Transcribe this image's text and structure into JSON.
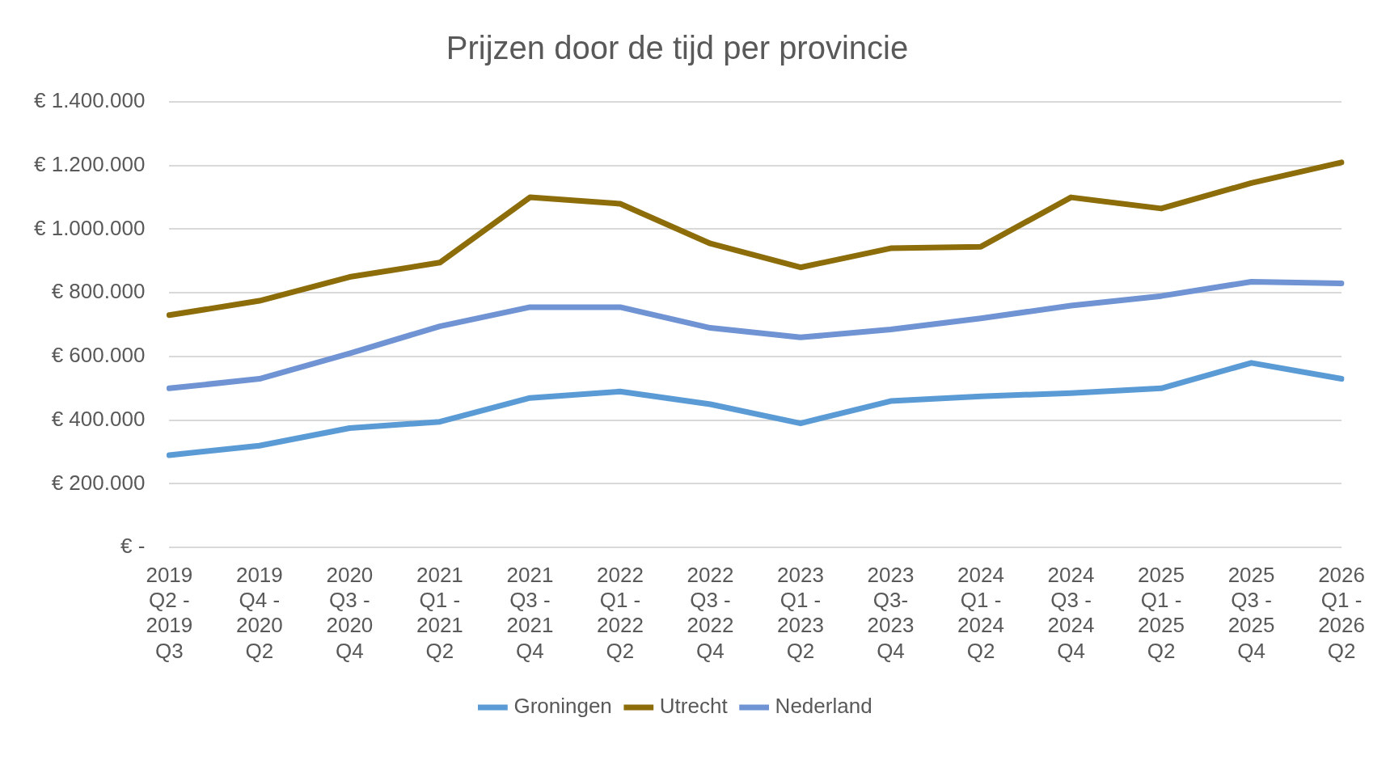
{
  "chart_data": {
    "type": "line",
    "title": "Prijzen door de tijd per provincie",
    "categories": [
      "2019 Q2 - 2019 Q3",
      "2019 Q4 - 2020 Q2",
      "2020 Q3 - 2020 Q4",
      "2021 Q1 - 2021 Q2",
      "2021 Q3 - 2021 Q4",
      "2022 Q1 - 2022 Q2",
      "2022 Q3 - 2022 Q4",
      "2023 Q1 - 2023 Q2",
      "2023 Q3-2023 Q4",
      "2024 Q1 - 2024 Q2",
      "2024 Q3 - 2024 Q4",
      "2025 Q1 - 2025 Q2",
      "2025 Q3 - 2025 Q4",
      "2026 Q1 - 2026 Q2"
    ],
    "series": [
      {
        "name": "Groningen",
        "color": "#5b9bd5",
        "values": [
          290000,
          320000,
          375000,
          395000,
          470000,
          490000,
          450000,
          390000,
          460000,
          475000,
          485000,
          500000,
          580000,
          530000
        ]
      },
      {
        "name": "Utrecht",
        "color": "#8c6d0a",
        "values": [
          730000,
          775000,
          850000,
          895000,
          1100000,
          1080000,
          955000,
          880000,
          940000,
          945000,
          1100000,
          1065000,
          1145000,
          1210000
        ]
      },
      {
        "name": "Nederland",
        "color": "#6f93d3",
        "values": [
          500000,
          530000,
          610000,
          695000,
          755000,
          755000,
          690000,
          660000,
          685000,
          720000,
          760000,
          790000,
          835000,
          830000
        ]
      }
    ],
    "ylim": [
      0,
      1400000
    ],
    "yticks": [
      {
        "value": 0,
        "label": "€ -"
      },
      {
        "value": 200000,
        "label": "€ 200.000"
      },
      {
        "value": 400000,
        "label": "€ 400.000"
      },
      {
        "value": 600000,
        "label": "€ 600.000"
      },
      {
        "value": 800000,
        "label": "€ 800.000"
      },
      {
        "value": 1000000,
        "label": "€ 1.000.000"
      },
      {
        "value": 1200000,
        "label": "€ 1.200.000"
      },
      {
        "value": 1400000,
        "label": "€ 1.400.000"
      }
    ],
    "grid": "y",
    "legend": "bottom",
    "marker": "none",
    "line_style": "solid"
  }
}
